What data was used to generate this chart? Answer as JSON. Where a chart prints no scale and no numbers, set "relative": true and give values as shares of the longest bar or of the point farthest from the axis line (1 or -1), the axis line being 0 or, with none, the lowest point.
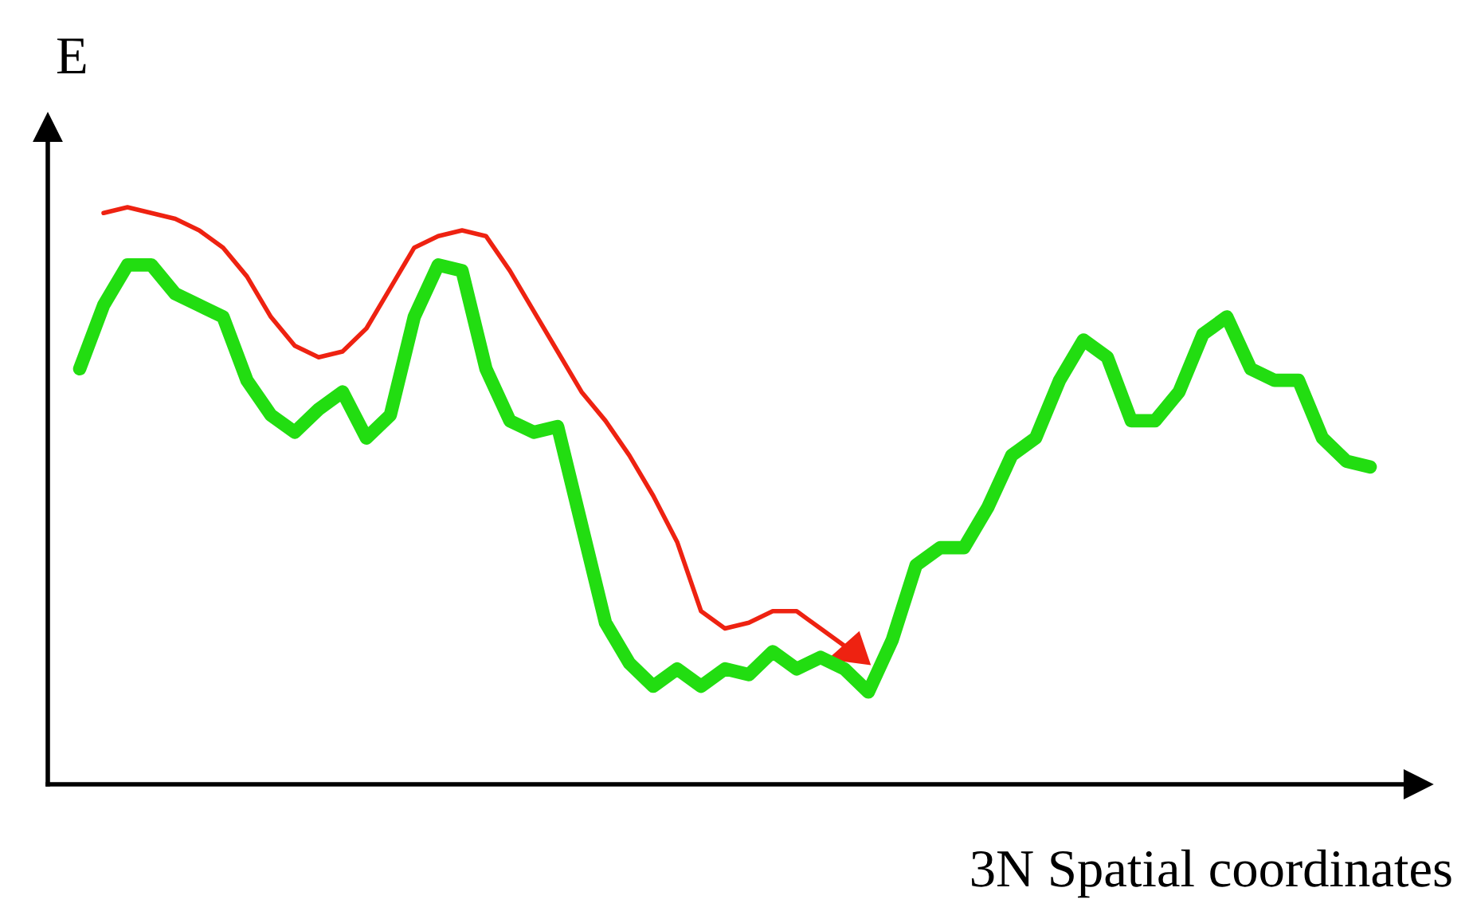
{
  "chart_data": {
    "type": "line",
    "relative": true,
    "ylabel": "E",
    "xlabel": "3N Spatial coordinates",
    "marker": "none",
    "line_style": "solid",
    "categories": [
      null,
      null,
      null,
      null,
      null,
      null,
      null,
      null,
      null,
      null,
      null,
      null,
      null,
      null,
      null,
      null,
      null,
      null,
      null,
      null,
      null,
      null,
      null,
      null,
      null,
      null,
      null,
      null,
      null,
      null,
      null,
      null,
      null,
      null,
      null,
      null,
      null,
      null,
      null,
      null,
      null,
      null,
      null,
      null,
      null,
      null,
      null,
      null,
      null,
      null,
      null,
      null,
      null,
      null,
      null
    ],
    "series": [
      {
        "color": "#22dd11",
        "values": [
          0.72,
          0.83,
          0.9,
          0.9,
          0.85,
          0.83,
          0.81,
          0.7,
          0.64,
          0.61,
          0.65,
          0.68,
          0.6,
          0.64,
          0.81,
          0.9,
          0.89,
          0.72,
          0.63,
          0.61,
          0.62,
          0.45,
          0.28,
          0.21,
          0.17,
          0.2,
          0.17,
          0.2,
          0.19,
          0.23,
          0.2,
          0.22,
          0.2,
          0.16,
          0.25,
          0.38,
          0.41,
          0.41,
          0.48,
          0.57,
          0.6,
          0.7,
          0.77,
          0.74,
          0.63,
          0.63,
          0.68,
          0.78,
          0.81,
          0.72,
          0.7,
          0.7,
          0.6,
          0.56,
          0.55
        ]
      },
      {
        "color": "#ee2211",
        "values": [
          null,
          0.99,
          1.0,
          0.99,
          0.98,
          0.96,
          0.93,
          0.88,
          0.81,
          0.76,
          0.74,
          0.75,
          0.79,
          0.86,
          0.93,
          0.95,
          0.96,
          0.95,
          0.89,
          0.82,
          0.75,
          0.68,
          0.63,
          0.57,
          0.5,
          0.42,
          0.3,
          0.27,
          0.28,
          0.3,
          0.3,
          0.27,
          0.24,
          null,
          null,
          null,
          null,
          null,
          null,
          null,
          null,
          null,
          null,
          null,
          null,
          null,
          null,
          null,
          null,
          null,
          null,
          null,
          null,
          null,
          null
        ]
      }
    ]
  }
}
